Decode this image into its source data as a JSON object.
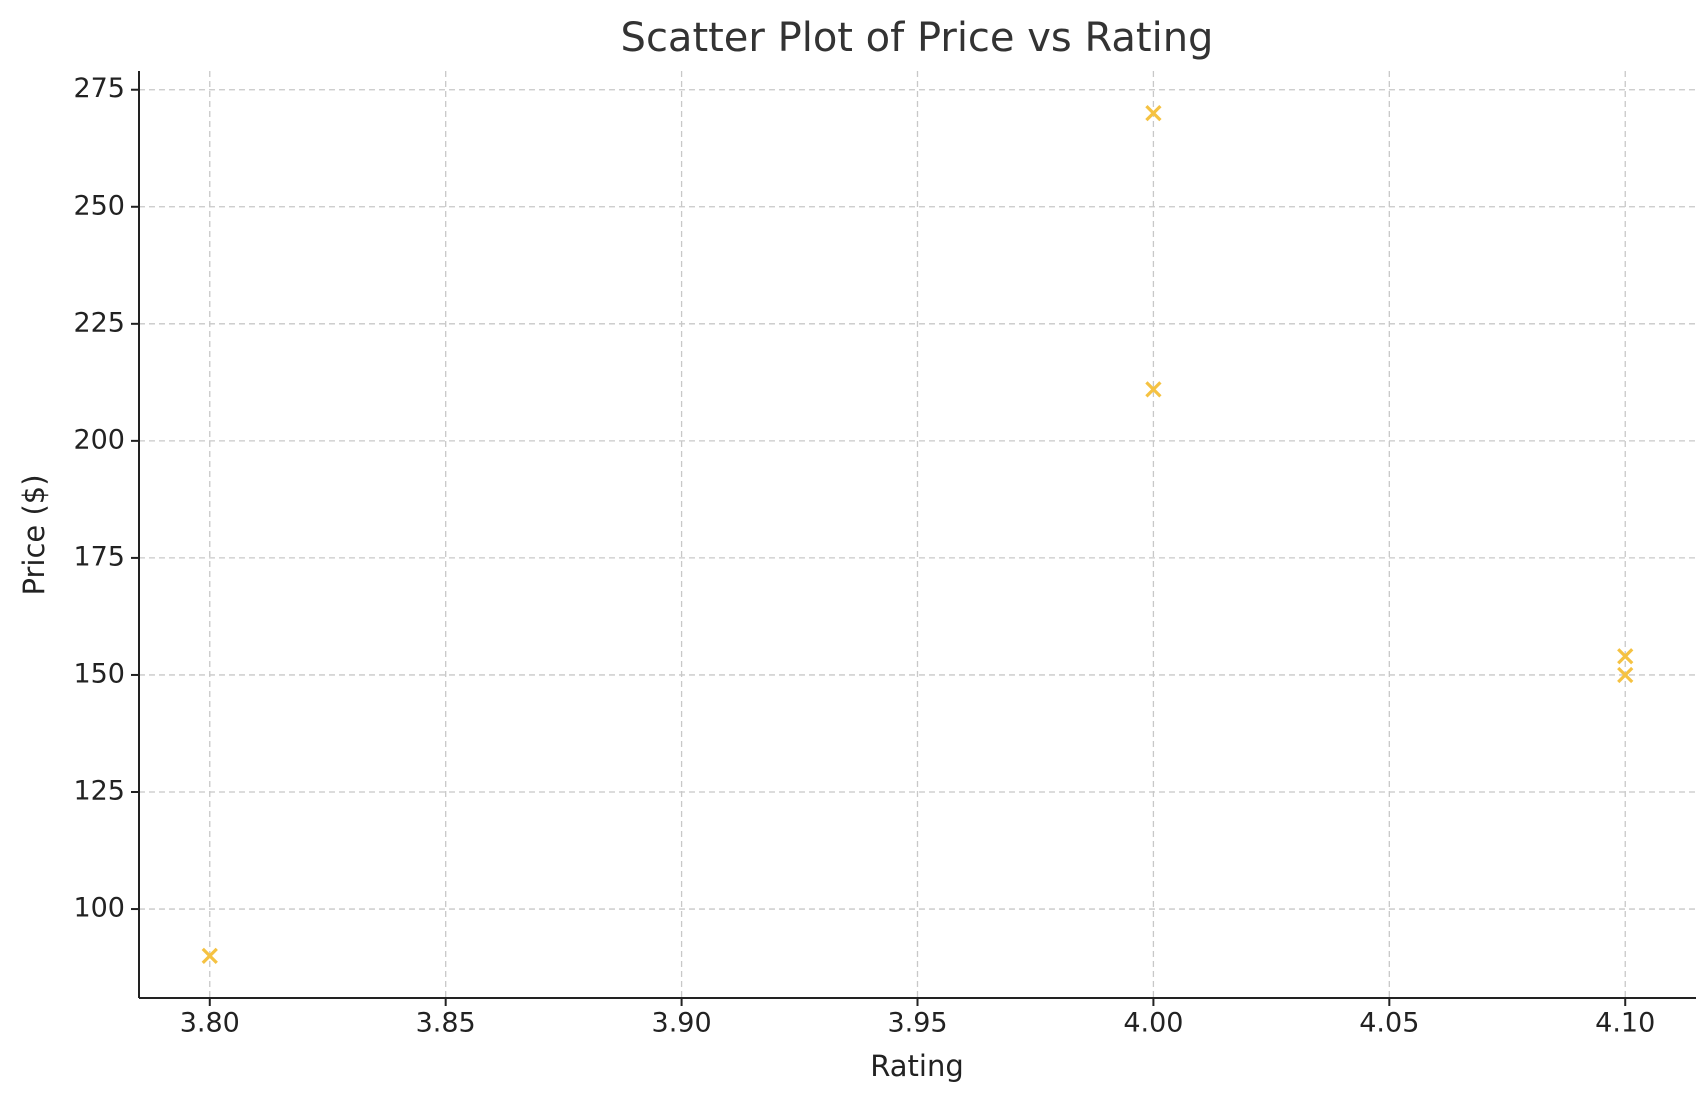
{
  "chart_data": {
    "type": "scatter",
    "title": "Scatter Plot of Price vs Rating",
    "x_label": "Rating",
    "y_label": "Price ($)",
    "series": [
      {
        "color": "#f5c242",
        "marker": "x",
        "x": [
          3.8,
          4.0,
          4.0,
          4.1,
          4.1
        ],
        "values": [
          90,
          270,
          211,
          154,
          150
        ]
      }
    ],
    "xlim": [
      3.785,
      4.115
    ],
    "xticks": [
      {
        "value": 3.8,
        "label": "3.80"
      },
      {
        "value": 3.85,
        "label": "3.85"
      },
      {
        "value": 3.9,
        "label": "3.90"
      },
      {
        "value": 3.95,
        "label": "3.95"
      },
      {
        "value": 4.0,
        "label": "4.00"
      },
      {
        "value": 4.05,
        "label": "4.05"
      },
      {
        "value": 4.1,
        "label": "4.10"
      }
    ],
    "ylim": [
      81,
      279
    ],
    "yticks": [
      100,
      125,
      150,
      175,
      200,
      225,
      250,
      275
    ],
    "grid": true
  }
}
